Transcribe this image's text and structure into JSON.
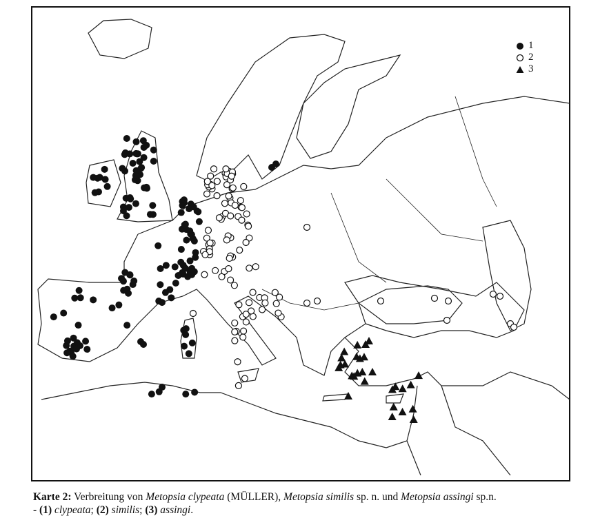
{
  "legend": [
    {
      "label": "1",
      "symbol": "filled-circle"
    },
    {
      "label": "2",
      "symbol": "open-circle"
    },
    {
      "label": "3",
      "symbol": "filled-triangle"
    }
  ],
  "caption": {
    "label": "Karte 2:",
    "text1": " Verbreitung von ",
    "sp1": "Metopsia clypeata",
    "author": " (MÜLLER), ",
    "sp2": "Metopsia similis",
    "text2": " sp. n. und ",
    "sp3": "Metopsia assingi",
    "text3": " sp.n.",
    "line2_prefix": "- ",
    "k1": "(1)",
    "n1": " clypeata",
    "sep1": "; ",
    "k2": "(2)",
    "n2": " similis",
    "sep2": "; ",
    "k3": "(3)",
    "n3": " assingi",
    "end": "."
  },
  "colors": {
    "ink": "#111111",
    "paper": "#ffffff"
  }
}
